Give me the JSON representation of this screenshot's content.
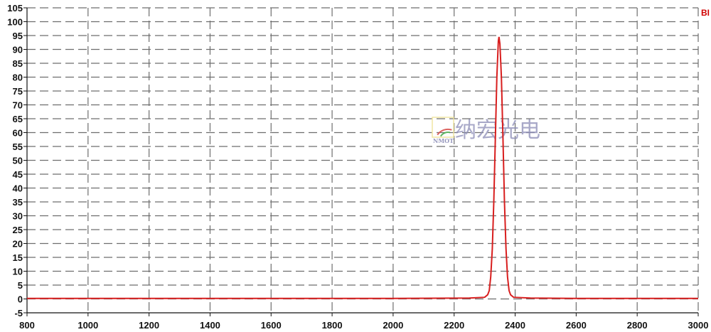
{
  "chart_data": {
    "type": "line",
    "title": "",
    "xlabel": "",
    "ylabel": "",
    "xlim": [
      800,
      3000
    ],
    "ylim": [
      -5,
      105
    ],
    "x_ticks": [
      800,
      1000,
      1200,
      1400,
      1600,
      1800,
      2000,
      2200,
      2400,
      2600,
      2800,
      3000
    ],
    "y_ticks": [
      -5,
      0,
      5,
      10,
      15,
      20,
      25,
      30,
      35,
      40,
      45,
      50,
      55,
      60,
      65,
      70,
      75,
      80,
      85,
      90,
      95,
      100,
      105
    ],
    "grid": true,
    "series": [
      {
        "color": "#d81e1e",
        "points": [
          [
            800,
            0.2
          ],
          [
            1200,
            0.2
          ],
          [
            1600,
            0.2
          ],
          [
            2000,
            0.2
          ],
          [
            2250,
            0.3
          ],
          [
            2300,
            0.6
          ],
          [
            2310,
            1.5
          ],
          [
            2315,
            3
          ],
          [
            2320,
            8
          ],
          [
            2325,
            18
          ],
          [
            2330,
            35
          ],
          [
            2335,
            58
          ],
          [
            2340,
            80
          ],
          [
            2345,
            93
          ],
          [
            2347,
            94.5
          ],
          [
            2350,
            92
          ],
          [
            2355,
            80
          ],
          [
            2360,
            58
          ],
          [
            2365,
            35
          ],
          [
            2370,
            18
          ],
          [
            2375,
            8
          ],
          [
            2380,
            3
          ],
          [
            2385,
            1.5
          ],
          [
            2395,
            0.6
          ],
          [
            2450,
            0.3
          ],
          [
            2600,
            0.2
          ],
          [
            2800,
            0.2
          ],
          [
            3000,
            0.2
          ]
        ]
      }
    ],
    "legend_fragment": "BI",
    "colors": {
      "grid": "#6e6e6e",
      "axis": "#111111",
      "line": "#d81e1e"
    }
  },
  "watermark": {
    "logo_text": "NMOT",
    "text": "纳宏光电"
  }
}
